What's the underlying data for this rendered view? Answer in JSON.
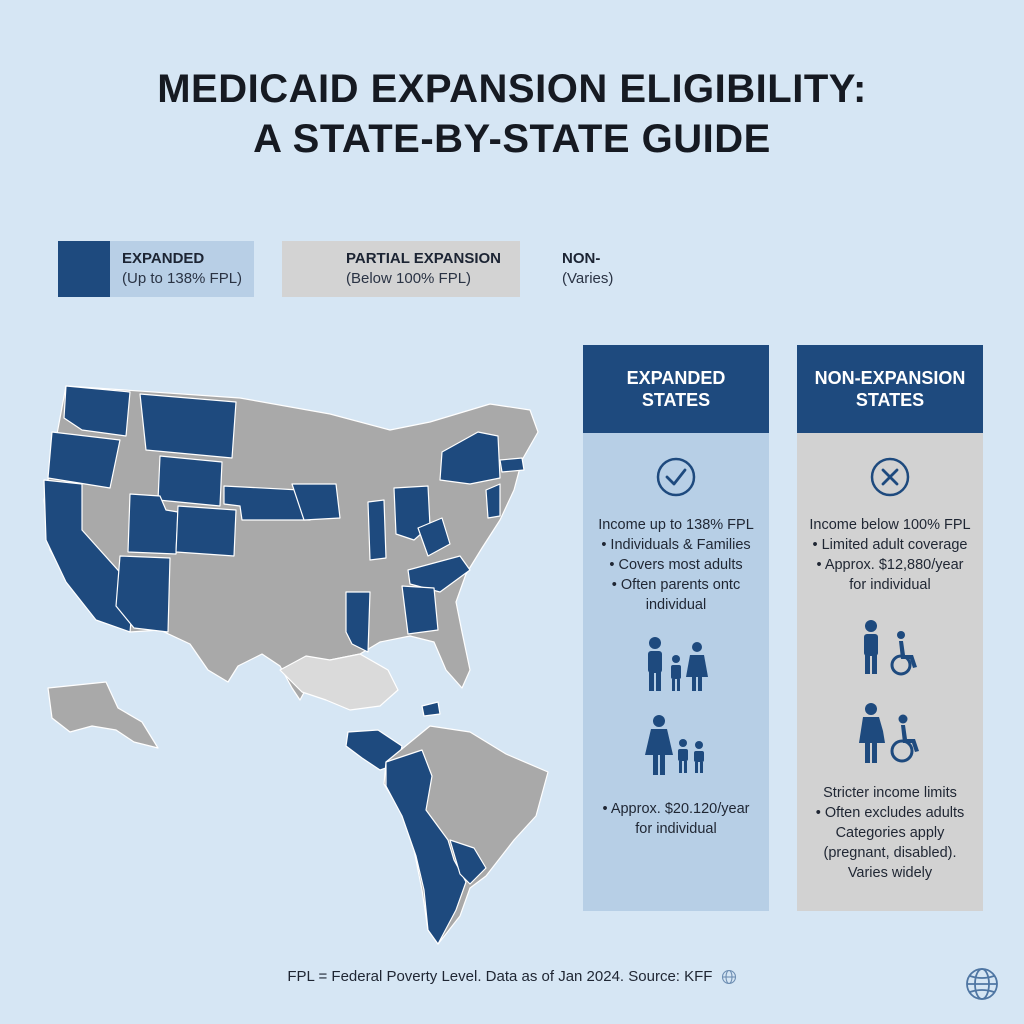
{
  "title": {
    "line1": "MEDICAID EXPANSION ELIGIBILITY:",
    "line2": "A STATE-BY-STATE GUIDE"
  },
  "legend": {
    "expanded": {
      "label": "EXPANDED",
      "sub": "(Up to 138% FPL)",
      "color": "#1e4a7e"
    },
    "partial": {
      "label": "PARTIAL EXPANSION",
      "sub": "(Below 100% FPL)",
      "color": "#d3d3d3"
    },
    "non": {
      "label": "NON-",
      "sub": "(Varies)"
    }
  },
  "colors": {
    "expanded": "#1e4a7e",
    "non_expanded": "#a9a9a9",
    "light": "#dadada",
    "background": "#d6e6f4"
  },
  "panels": {
    "expanded": {
      "title": "EXPANDED STATES",
      "icon": "check-circle-icon",
      "lines": [
        "Income up to 138% FPL",
        "• Individuals & Families",
        "• Covers most adults",
        "• Often parents ontc",
        "individual"
      ],
      "lines_bottom": [
        "• Approx. $20.120/year",
        "for individual"
      ]
    },
    "non": {
      "title": "NON-EXPANSION STATES",
      "icon": "x-circle-icon",
      "lines": [
        "Income below 100% FPL",
        "• Limited adult coverage",
        "• Approx. $12,880/year",
        "for individual"
      ],
      "lines_bottom": [
        "Stricter income limits",
        "• Often excludes adults",
        "Categories apply",
        "(pregnant, disabled).",
        "Varies widely"
      ]
    }
  },
  "footer": {
    "text": "FPL = Federal Poverty Level. Data as of Jan 2024. Source: KFF"
  }
}
